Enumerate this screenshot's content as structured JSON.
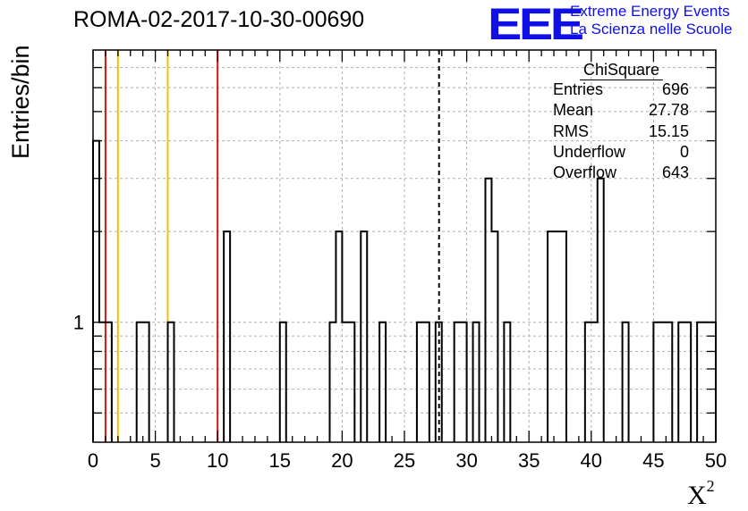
{
  "header": {
    "run_title": "ROMA-02-2017-10-30-00690",
    "logo_text": "EEE",
    "logo_line1": "Extreme Energy Events",
    "logo_line2": "La Scienza nelle Scuole"
  },
  "stats": {
    "title": "ChiSquare",
    "rows": [
      {
        "label": "Entries",
        "value": "696"
      },
      {
        "label": "Mean",
        "value": "27.78"
      },
      {
        "label": "RMS",
        "value": "15.15"
      },
      {
        "label": "Underflow",
        "value": "0"
      },
      {
        "label": "Overflow",
        "value": "643"
      }
    ]
  },
  "colors": {
    "red": "#dd1111",
    "yellow": "#f2c200",
    "histogram": "#000000",
    "grid": "#b0b0b0",
    "logo": "#1010e6"
  },
  "chart_data": {
    "type": "histogram",
    "xlabel_main": "X",
    "xlabel_sup": "2",
    "ylabel": "Entries/bin",
    "xlim": [
      0,
      50
    ],
    "ylim": [
      0.4,
      8
    ],
    "yscale": "log",
    "grid": true,
    "legend": "top-right",
    "bin_width": 0.5,
    "x_ticks": [
      0,
      5,
      10,
      15,
      20,
      25,
      30,
      35,
      40,
      45,
      50
    ],
    "y_tick_labels": [
      1
    ],
    "bins": [
      {
        "x0": 0.0,
        "x1": 0.5,
        "count": 4
      },
      {
        "x0": 0.5,
        "x1": 1.5,
        "count": 1
      },
      {
        "x0": 3.5,
        "x1": 4.5,
        "count": 1
      },
      {
        "x0": 6.0,
        "x1": 6.5,
        "count": 1
      },
      {
        "x0": 10.5,
        "x1": 11.0,
        "count": 2
      },
      {
        "x0": 15.0,
        "x1": 15.5,
        "count": 1
      },
      {
        "x0": 19.0,
        "x1": 19.5,
        "count": 1
      },
      {
        "x0": 19.5,
        "x1": 20.0,
        "count": 2
      },
      {
        "x0": 20.0,
        "x1": 21.0,
        "count": 1
      },
      {
        "x0": 21.5,
        "x1": 22.0,
        "count": 2
      },
      {
        "x0": 23.0,
        "x1": 23.5,
        "count": 1
      },
      {
        "x0": 26.0,
        "x1": 27.0,
        "count": 1
      },
      {
        "x0": 27.5,
        "x1": 28.0,
        "count": 1
      },
      {
        "x0": 29.0,
        "x1": 30.0,
        "count": 1
      },
      {
        "x0": 30.5,
        "x1": 31.0,
        "count": 1
      },
      {
        "x0": 31.5,
        "x1": 32.0,
        "count": 3
      },
      {
        "x0": 32.0,
        "x1": 32.5,
        "count": 2
      },
      {
        "x0": 33.0,
        "x1": 33.5,
        "count": 1
      },
      {
        "x0": 36.5,
        "x1": 38.0,
        "count": 2
      },
      {
        "x0": 39.5,
        "x1": 40.5,
        "count": 1
      },
      {
        "x0": 40.5,
        "x1": 41.0,
        "count": 3
      },
      {
        "x0": 42.5,
        "x1": 43.0,
        "count": 1
      },
      {
        "x0": 45.0,
        "x1": 46.5,
        "count": 1
      },
      {
        "x0": 47.0,
        "x1": 48.0,
        "count": 1
      },
      {
        "x0": 48.5,
        "x1": 50.0,
        "count": 1
      }
    ],
    "vertical_lines": [
      {
        "x": 1,
        "color": "red",
        "style": "solid"
      },
      {
        "x": 2,
        "color": "yellow",
        "style": "solid"
      },
      {
        "x": 6,
        "color": "yellow",
        "style": "solid"
      },
      {
        "x": 10,
        "color": "red",
        "style": "solid"
      },
      {
        "x": 27.78,
        "color": "black",
        "style": "dashed"
      }
    ]
  }
}
